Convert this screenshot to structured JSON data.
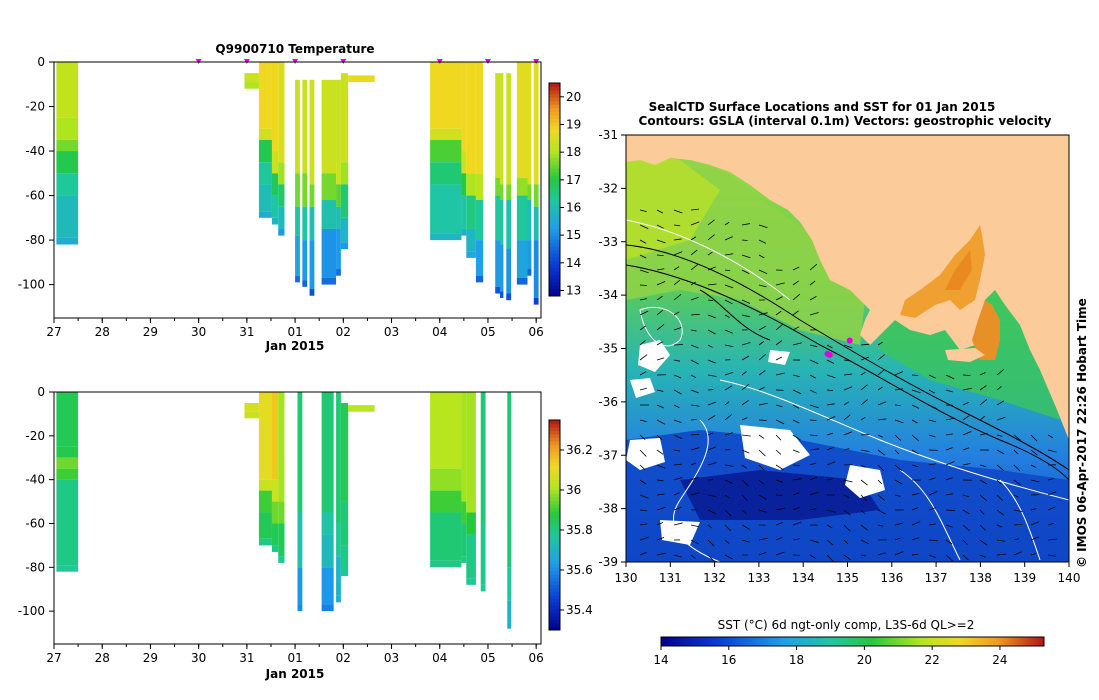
{
  "top_title": "Q9900710  Temperature",
  "map_title_1": "SealCTD Surface Locations and SST for 01 Jan 2015",
  "map_title_2": "Contours: GSLA (interval 0.1m) Vectors: geostrophic velocity",
  "watermark": "© IMOS 06-Apr-2017 22:26 Hobart Time",
  "sst_label": "SST (°C) 6d ngt-only comp, L3S-6d QL>=2",
  "colors": {
    "land": "#fbcb9a",
    "marker": "#e000e0",
    "missing": "#ffffff",
    "axis": "#000000"
  },
  "chart_data": [
    {
      "type": "heatmap",
      "title": "Q9900710  Temperature",
      "xlabel": "Jan 2015",
      "ylabel": "",
      "xlim": [
        27,
        37.1
      ],
      "ylim": [
        -115,
        0
      ],
      "x_ticks": [
        27,
        28,
        29,
        30,
        31,
        32,
        33,
        34,
        35,
        36,
        37
      ],
      "x_tick_labels": [
        "27",
        "28",
        "29",
        "30",
        "31",
        "01",
        "02",
        "03",
        "04",
        "05",
        "06"
      ],
      "y_ticks": [
        0,
        -20,
        -40,
        -60,
        -80,
        -100
      ],
      "y_tick_labels": [
        "0",
        "-20",
        "-40",
        "-60",
        "-80",
        "-100"
      ],
      "surface_markers": [
        30.0,
        31.0,
        32.0,
        33.0,
        35.0,
        36.0,
        37.0
      ],
      "colorbar": {
        "min": 12.8,
        "max": 20.5,
        "ticks": [
          13,
          14,
          15,
          16,
          17,
          18,
          19,
          20
        ],
        "tick_labels": [
          "13",
          "14",
          "15",
          "16",
          "17",
          "18",
          "19",
          "20"
        ]
      },
      "profiles": [
        {
          "x0": 27.05,
          "x1": 27.5,
          "z": [
            [
              0,
              18.2
            ],
            [
              -25,
              18.0
            ],
            [
              -35,
              17.6
            ],
            [
              -40,
              16.9
            ],
            [
              -50,
              16.3
            ],
            [
              -60,
              15.9
            ],
            [
              -79,
              15.6
            ]
          ]
        },
        {
          "x0": 30.95,
          "x1": 31.25,
          "z": [
            [
              -5,
              18.3
            ],
            [
              -9,
              18.0
            ]
          ]
        },
        {
          "x0": 31.25,
          "x1": 31.52,
          "z": [
            [
              0,
              18.8
            ],
            [
              -30,
              18.4
            ],
            [
              -35,
              16.9
            ],
            [
              -45,
              16.3
            ],
            [
              -55,
              16.0
            ],
            [
              -67,
              15.6
            ]
          ]
        },
        {
          "x0": 31.52,
          "x1": 31.65,
          "z": [
            [
              0,
              18.8
            ],
            [
              -40,
              18.3
            ],
            [
              -50,
              16.8
            ],
            [
              -60,
              16.2
            ],
            [
              -70,
              15.8
            ]
          ]
        },
        {
          "x0": 31.65,
          "x1": 31.78,
          "z": [
            [
              0,
              18.5
            ],
            [
              -45,
              17.9
            ],
            [
              -55,
              16.7
            ],
            [
              -65,
              15.9
            ],
            [
              -75,
              15.2
            ]
          ]
        },
        {
          "x0": 32.0,
          "x1": 32.1,
          "z": [
            [
              -8,
              18.3
            ],
            [
              -50,
              17.6
            ],
            [
              -65,
              16.2
            ],
            [
              -78,
              15.4
            ],
            [
              -96,
              14.6
            ]
          ]
        },
        {
          "x0": 32.15,
          "x1": 32.25,
          "z": [
            [
              -8,
              18.3
            ],
            [
              -50,
              17.6
            ],
            [
              -65,
              16.2
            ],
            [
              -80,
              15.2
            ],
            [
              -98,
              14.5
            ]
          ]
        },
        {
          "x0": 32.3,
          "x1": 32.4,
          "z": [
            [
              -8,
              18.3
            ],
            [
              -55,
              17.6
            ],
            [
              -65,
              16.1
            ],
            [
              -80,
              15.2
            ],
            [
              -102,
              14.2
            ]
          ]
        },
        {
          "x0": 32.55,
          "x1": 32.85,
          "z": [
            [
              -8,
              18.3
            ],
            [
              -50,
              17.6
            ],
            [
              -62,
              16.1
            ],
            [
              -75,
              15.1
            ],
            [
              -97,
              14.6
            ]
          ]
        },
        {
          "x0": 32.85,
          "x1": 32.95,
          "z": [
            [
              -8,
              18.3
            ],
            [
              -55,
              17.4
            ],
            [
              -65,
              16.0
            ],
            [
              -75,
              15.2
            ],
            [
              -93,
              14.6
            ]
          ]
        },
        {
          "x0": 32.95,
          "x1": 33.1,
          "z": [
            [
              -5,
              18.3
            ],
            [
              -45,
              17.9
            ],
            [
              -55,
              16.6
            ],
            [
              -70,
              15.8
            ],
            [
              -81,
              15.2
            ]
          ]
        },
        {
          "x0": 33.1,
          "x1": 33.65,
          "z": [
            [
              -6,
              18.7
            ]
          ]
        },
        {
          "x0": 34.8,
          "x1": 35.45,
          "z": [
            [
              0,
              18.8
            ],
            [
              -30,
              18.4
            ],
            [
              -35,
              17.3
            ],
            [
              -45,
              16.6
            ],
            [
              -55,
              16.2
            ],
            [
              -77,
              15.8
            ]
          ]
        },
        {
          "x0": 35.45,
          "x1": 35.55,
          "z": [
            [
              0,
              18.8
            ],
            [
              -40,
              18.3
            ],
            [
              -50,
              17.0
            ],
            [
              -60,
              16.2
            ],
            [
              -75,
              15.6
            ]
          ]
        },
        {
          "x0": 35.55,
          "x1": 35.75,
          "z": [
            [
              0,
              18.8
            ],
            [
              -50,
              18.0
            ],
            [
              -60,
              16.5
            ],
            [
              -75,
              15.8
            ],
            [
              -85,
              15.5
            ]
          ]
        },
        {
          "x0": 35.75,
          "x1": 35.9,
          "z": [
            [
              0,
              18.8
            ],
            [
              -50,
              18.1
            ],
            [
              -62,
              16.3
            ],
            [
              -80,
              15.3
            ],
            [
              -96,
              14.5
            ]
          ]
        },
        {
          "x0": 36.15,
          "x1": 36.25,
          "z": [
            [
              -5,
              18.3
            ],
            [
              -52,
              17.6
            ],
            [
              -60,
              16.3
            ],
            [
              -80,
              15.2
            ],
            [
              -101,
              14.3
            ]
          ]
        },
        {
          "x0": 36.25,
          "x1": 36.32,
          "z": [
            [
              -5,
              18.3
            ],
            [
              -55,
              17.6
            ],
            [
              -62,
              16.2
            ],
            [
              -82,
              15.2
            ],
            [
              -103,
              14.3
            ]
          ]
        },
        {
          "x0": 36.38,
          "x1": 36.48,
          "z": [
            [
              -5,
              18.3
            ],
            [
              -55,
              17.6
            ],
            [
              -62,
              16.1
            ],
            [
              -84,
              15.1
            ],
            [
              -104,
              14.2
            ]
          ]
        },
        {
          "x0": 36.6,
          "x1": 36.82,
          "z": [
            [
              0,
              18.6
            ],
            [
              -52,
              17.8
            ],
            [
              -60,
              16.3
            ],
            [
              -80,
              15.4
            ],
            [
              -97,
              14.5
            ]
          ]
        },
        {
          "x0": 36.82,
          "x1": 36.9,
          "z": [
            [
              0,
              18.6
            ],
            [
              -55,
              17.6
            ],
            [
              -62,
              16.0
            ],
            [
              -80,
              15.2
            ],
            [
              -93,
              14.5
            ]
          ]
        },
        {
          "x0": 36.95,
          "x1": 37.05,
          "z": [
            [
              0,
              18.6
            ],
            [
              -55,
              17.6
            ],
            [
              -65,
              16.0
            ],
            [
              -80,
              15.0
            ],
            [
              -106,
              14.0
            ]
          ]
        }
      ]
    },
    {
      "type": "heatmap",
      "title": "",
      "xlabel": "Jan 2015",
      "ylabel": "",
      "xlim": [
        27,
        37.1
      ],
      "ylim": [
        -115,
        0
      ],
      "x_ticks": [
        27,
        28,
        29,
        30,
        31,
        32,
        33,
        34,
        35,
        36,
        37
      ],
      "x_tick_labels": [
        "27",
        "28",
        "29",
        "30",
        "31",
        "01",
        "02",
        "03",
        "04",
        "05",
        "06"
      ],
      "y_ticks": [
        0,
        -20,
        -40,
        -60,
        -80,
        -100
      ],
      "y_tick_labels": [
        "0",
        "-20",
        "-40",
        "-60",
        "-80",
        "-100"
      ],
      "colorbar": {
        "min": 35.3,
        "max": 36.35,
        "ticks": [
          35.4,
          35.6,
          35.8,
          36,
          36.2
        ],
        "tick_labels": [
          "35.4",
          "35.6",
          "35.8",
          "36",
          "36.2"
        ]
      },
      "profiles": [
        {
          "x0": 27.05,
          "x1": 27.5,
          "z": [
            [
              0,
              35.85
            ],
            [
              -25,
              35.86
            ],
            [
              -30,
              35.95
            ],
            [
              -35,
              35.9
            ],
            [
              -40,
              35.8
            ],
            [
              -79,
              35.78
            ]
          ]
        },
        {
          "x0": 30.95,
          "x1": 31.25,
          "z": [
            [
              -5,
              36.07
            ],
            [
              -9,
              36.05
            ]
          ]
        },
        {
          "x0": 31.25,
          "x1": 31.52,
          "z": [
            [
              0,
              36.1
            ],
            [
              -40,
              36.05
            ],
            [
              -45,
              35.9
            ],
            [
              -55,
              35.85
            ],
            [
              -67,
              35.8
            ]
          ]
        },
        {
          "x0": 31.52,
          "x1": 31.65,
          "z": [
            [
              0,
              36.15
            ],
            [
              -40,
              36.05
            ],
            [
              -50,
              35.95
            ],
            [
              -60,
              35.85
            ],
            [
              -70,
              35.8
            ]
          ]
        },
        {
          "x0": 31.65,
          "x1": 31.78,
          "z": [
            [
              0,
              36.0
            ],
            [
              -50,
              35.95
            ],
            [
              -60,
              35.85
            ],
            [
              -75,
              35.78
            ]
          ]
        },
        {
          "x0": 32.05,
          "x1": 32.15,
          "z": [
            [
              0,
              35.82
            ],
            [
              -55,
              35.75
            ],
            [
              -80,
              35.62
            ],
            [
              -97,
              35.6
            ]
          ]
        },
        {
          "x0": 32.55,
          "x1": 32.8,
          "z": [
            [
              0,
              35.82
            ],
            [
              -55,
              35.76
            ],
            [
              -65,
              35.72
            ],
            [
              -80,
              35.62
            ],
            [
              -97,
              35.58
            ]
          ]
        },
        {
          "x0": 32.85,
          "x1": 32.95,
          "z": [
            [
              0,
              35.82
            ],
            [
              -60,
              35.78
            ],
            [
              -75,
              35.7
            ],
            [
              -93,
              35.68
            ]
          ]
        },
        {
          "x0": 32.95,
          "x1": 33.1,
          "z": [
            [
              -5,
              35.85
            ],
            [
              -50,
              35.82
            ],
            [
              -70,
              35.8
            ],
            [
              -81,
              35.78
            ]
          ]
        },
        {
          "x0": 33.1,
          "x1": 33.65,
          "z": [
            [
              -6,
              36.02
            ]
          ]
        },
        {
          "x0": 34.8,
          "x1": 35.45,
          "z": [
            [
              0,
              36.02
            ],
            [
              -35,
              35.98
            ],
            [
              -45,
              35.9
            ],
            [
              -55,
              35.82
            ],
            [
              -77,
              35.8
            ]
          ]
        },
        {
          "x0": 35.45,
          "x1": 35.55,
          "z": [
            [
              0,
              36.0
            ],
            [
              -50,
              35.9
            ],
            [
              -60,
              35.82
            ],
            [
              -75,
              35.8
            ]
          ]
        },
        {
          "x0": 35.55,
          "x1": 35.75,
          "z": [
            [
              0,
              36.0
            ],
            [
              -55,
              35.88
            ],
            [
              -65,
              35.8
            ],
            [
              -85,
              35.78
            ]
          ]
        },
        {
          "x0": 35.85,
          "x1": 35.95,
          "z": [
            [
              0,
              35.82
            ],
            [
              -60,
              35.8
            ],
            [
              -88,
              35.78
            ]
          ]
        },
        {
          "x0": 36.4,
          "x1": 36.48,
          "z": [
            [
              0,
              35.82
            ],
            [
              -80,
              35.78
            ],
            [
              -95,
              35.7
            ],
            [
              -105,
              35.68
            ]
          ]
        }
      ]
    },
    {
      "type": "heatmap",
      "title": "SealCTD Surface Locations and SST for 01 Jan 2015",
      "subtitle": "Contours: GSLA (interval 0.1m) Vectors: geostrophic velocity",
      "xlabel": "",
      "ylabel": "",
      "xlim": [
        130,
        140
      ],
      "ylim": [
        -39,
        -31
      ],
      "x_ticks": [
        130,
        131,
        132,
        133,
        134,
        135,
        136,
        137,
        138,
        139,
        140
      ],
      "x_tick_labels": [
        "130",
        "131",
        "132",
        "133",
        "134",
        "135",
        "136",
        "137",
        "138",
        "139",
        "140"
      ],
      "y_ticks": [
        -31,
        -32,
        -33,
        -34,
        -35,
        -36,
        -37,
        -38,
        -39
      ],
      "y_tick_labels": [
        "-31",
        "-32",
        "-33",
        "-34",
        "-35",
        "-36",
        "-37",
        "-38",
        "-39"
      ],
      "colorbar": {
        "min": 14,
        "max": 25.3,
        "label": "SST (°C) 6d ngt-only comp, L3S-6d QL>=2",
        "ticks": [
          14,
          16,
          18,
          20,
          22,
          24
        ],
        "tick_labels": [
          "14",
          "16",
          "18",
          "20",
          "22",
          "24"
        ]
      },
      "seal_locations": [
        [
          134.55,
          -35.1
        ],
        [
          134.6,
          -35.12
        ],
        [
          135.05,
          -34.85
        ]
      ]
    }
  ]
}
